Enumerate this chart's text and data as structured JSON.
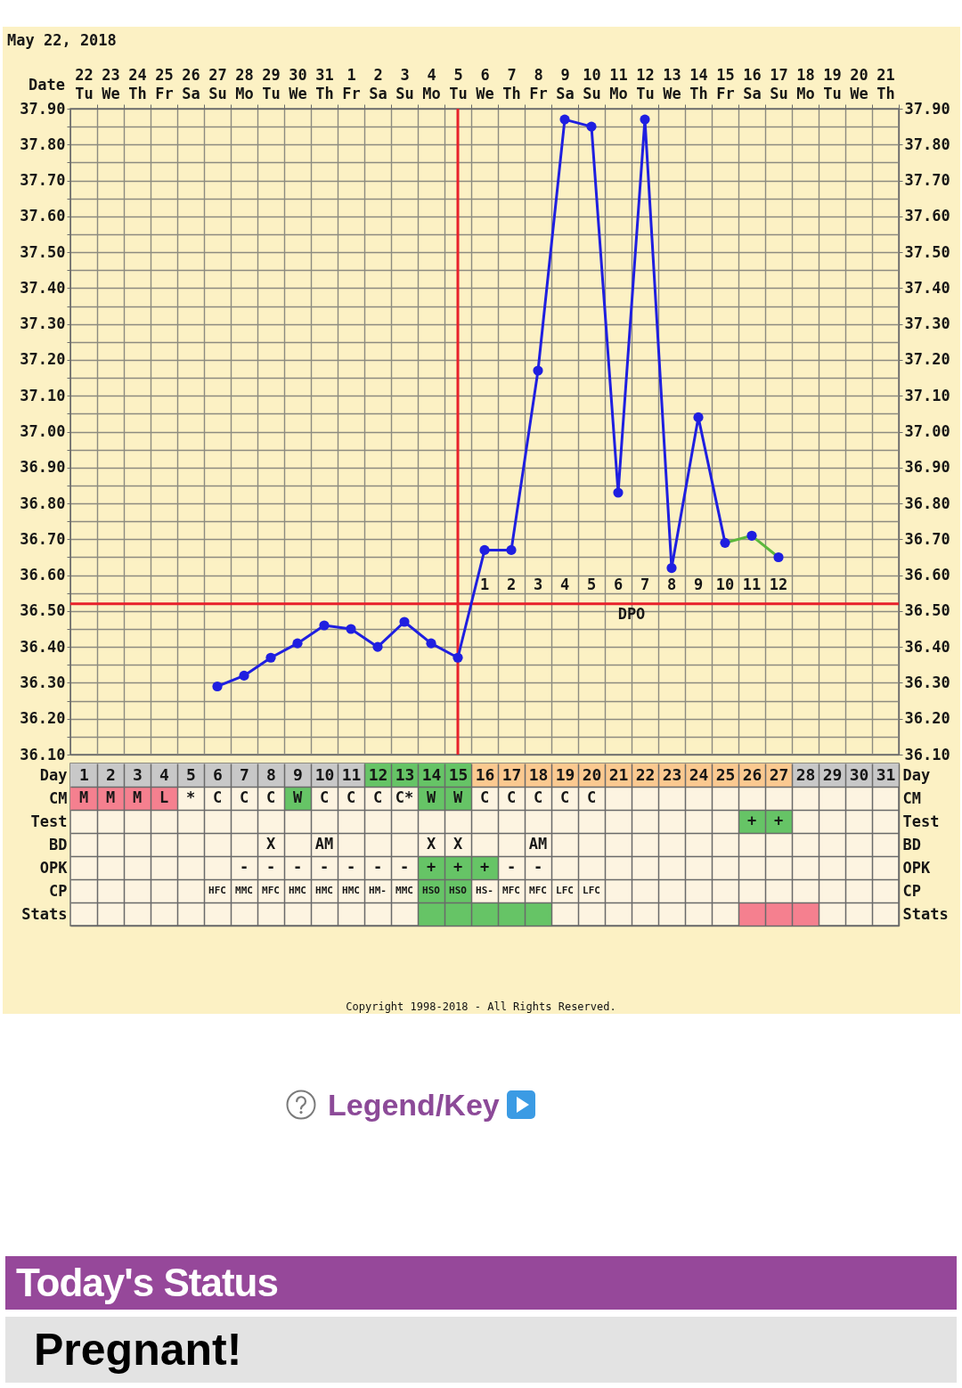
{
  "chart_data": [
    {
      "type": "line",
      "title": "May 22, 2018",
      "xlim": [
        0.5,
        31.5
      ],
      "xticks": [
        {
          "value": 1,
          "label": "1"
        },
        {
          "value": 2,
          "label": "2"
        },
        3,
        4,
        5,
        6,
        7,
        8,
        9,
        10,
        11,
        12,
        13,
        14,
        15,
        16,
        17,
        18,
        19,
        20,
        21,
        22,
        23,
        24,
        25,
        26,
        27,
        28,
        29,
        30,
        31
      ],
      "x2label": "Date",
      "x2lim": [
        "2018-05-21T12:00",
        "2018-06-21T12:00"
      ],
      "x2ticks": [
        {
          "value": "2018-05-22",
          "label": "22 Tu"
        },
        {
          "value": "2018-05-23",
          "label": "23 We"
        },
        {
          "value": "2018-05-24",
          "label": "24 Th"
        },
        {
          "value": "2018-05-25",
          "label": "25 Fr"
        },
        {
          "value": "2018-05-26",
          "label": "26 Sa"
        },
        {
          "value": "2018-05-27",
          "label": "27 Su"
        },
        {
          "value": "2018-05-28",
          "label": "28 Mo"
        },
        {
          "value": "2018-05-29",
          "label": "29 Tu"
        },
        {
          "value": "2018-05-30",
          "label": "30 We"
        },
        {
          "value": "2018-05-31",
          "label": "31 Th"
        },
        {
          "value": "2018-06-01",
          "label": "1 Fr"
        },
        {
          "value": "2018-06-02",
          "label": "2 Sa"
        },
        {
          "value": "2018-06-03",
          "label": "3 Su"
        },
        {
          "value": "2018-06-04",
          "label": "4 Mo"
        },
        {
          "value": "2018-06-05",
          "label": "5 Tu"
        },
        {
          "value": "2018-06-06",
          "label": "6 We"
        },
        {
          "value": "2018-06-07",
          "label": "7 Th"
        },
        {
          "value": "2018-06-08",
          "label": "8 Fr"
        },
        {
          "value": "2018-06-09",
          "label": "9 Sa"
        },
        {
          "value": "2018-06-10",
          "label": "10 Su"
        },
        {
          "value": "2018-06-11",
          "label": "11 Mo"
        },
        {
          "value": "2018-06-12",
          "label": "12 Tu"
        },
        {
          "value": "2018-06-13",
          "label": "13 We"
        },
        {
          "value": "2018-06-14",
          "label": "14 Th"
        },
        {
          "value": "2018-06-15",
          "label": "15 Fr"
        },
        {
          "value": "2018-06-16",
          "label": "16 Sa"
        },
        {
          "value": "2018-06-17",
          "label": "17 Su"
        },
        {
          "value": "2018-06-18",
          "label": "18 Mo"
        },
        {
          "value": "2018-06-19",
          "label": "19 Tu"
        },
        {
          "value": "2018-06-20",
          "label": "20 We"
        },
        {
          "value": "2018-06-21",
          "label": "21 Th"
        }
      ],
      "ylim": [
        36.1,
        37.9
      ],
      "yticks": [
        {
          "value": 36.1,
          "label": "36.10"
        },
        {
          "value": 36.15,
          "label": null
        },
        {
          "value": 36.2,
          "label": "36.20"
        },
        {
          "value": 36.25,
          "label": null
        },
        {
          "value": 36.3,
          "label": "36.30"
        },
        {
          "value": 36.35,
          "label": null
        },
        {
          "value": 36.4,
          "label": "36.40"
        },
        {
          "value": 36.45,
          "label": null
        },
        {
          "value": 36.5,
          "label": "36.50"
        },
        {
          "value": 36.55,
          "label": null
        },
        {
          "value": 36.6,
          "label": "36.60"
        },
        {
          "value": 36.65,
          "label": null
        },
        {
          "value": 36.7,
          "label": "36.70"
        },
        {
          "value": 36.75,
          "label": null
        },
        {
          "value": 36.8,
          "label": "36.80"
        },
        {
          "value": 36.85,
          "label": null
        },
        {
          "value": 36.9,
          "label": "36.90"
        },
        {
          "value": 36.95,
          "label": null
        },
        {
          "value": 37,
          "label": "37.00"
        },
        {
          "value": 37.05,
          "label": null
        },
        {
          "value": 37.1,
          "label": "37.10"
        },
        {
          "value": 37.15,
          "label": null
        },
        {
          "value": 37.2,
          "label": "37.20"
        },
        {
          "value": 37.25,
          "label": null
        },
        {
          "value": 37.3,
          "label": "37.30"
        },
        {
          "value": 37.35,
          "label": null
        },
        {
          "value": 37.4,
          "label": "37.40"
        },
        {
          "value": 37.45,
          "label": null
        },
        {
          "value": 37.5,
          "label": "37.50"
        },
        {
          "value": 37.55,
          "label": null
        },
        {
          "value": 37.6,
          "label": "37.60"
        },
        {
          "value": 37.65,
          "label": null
        },
        {
          "value": 37.7,
          "label": "37.70"
        },
        {
          "value": 37.75,
          "label": null
        },
        {
          "value": 37.8,
          "label": "37.80"
        },
        {
          "value": 37.85,
          "label": null
        },
        {
          "value": 37.9,
          "label": "37.90"
        }
      ],
      "y2lim": [
        36.1,
        37.9
      ],
      "y2ticks": [
        {
          "value": 36.1,
          "label": "36.10"
        },
        {
          "value": 36.2,
          "label": "36.20"
        },
        {
          "value": 36.3,
          "label": "36.30"
        },
        {
          "value": 36.4,
          "label": "36.40"
        },
        {
          "value": 36.5,
          "label": "36.50"
        },
        {
          "value": 36.6,
          "label": "36.60"
        },
        {
          "value": 36.7,
          "label": "36.70"
        },
        {
          "value": 36.8,
          "label": "36.80"
        },
        {
          "value": 36.9,
          "label": "36.90"
        },
        {
          "value": 37,
          "label": "37.00"
        },
        {
          "value": 37.1,
          "label": "37.10"
        },
        {
          "value": 37.2,
          "label": "37.20"
        },
        {
          "value": 37.3,
          "label": "37.30"
        },
        {
          "value": 37.4,
          "label": "37.40"
        },
        {
          "value": 37.5,
          "label": "37.50"
        },
        {
          "value": 37.6,
          "label": "37.60"
        },
        {
          "value": 37.7,
          "label": "37.70"
        },
        {
          "value": 37.8,
          "label": "37.80"
        },
        {
          "value": 37.9,
          "label": "37.90"
        }
      ],
      "grid": true,
      "marker": "circle",
      "series": [
        {
          "type": "line",
          "color": "#5cb83c",
          "marker": "none",
          "x": [
            25,
            26,
            27
          ],
          "values": [
            36.69,
            36.71,
            36.65
          ]
        },
        {
          "type": "line",
          "color": "#1f1fe0",
          "x": [
            6,
            7,
            8,
            9,
            10,
            11,
            12,
            13,
            14,
            15,
            16,
            17,
            18,
            19,
            20,
            21,
            22,
            23,
            24,
            25
          ],
          "values": [
            36.29,
            36.32,
            36.37,
            36.41,
            36.46,
            36.45,
            36.4,
            36.47,
            36.41,
            36.37,
            36.67,
            36.67,
            37.17,
            37.87,
            37.85,
            36.83,
            37.87,
            36.62,
            37.04,
            36.69
          ]
        },
        {
          "type": "scatter",
          "color": "#1f1fe0",
          "x": [
            26,
            27
          ],
          "values": [
            36.71,
            36.65
          ]
        }
      ],
      "ref_lines": [
        {
          "axis": "x",
          "value": 15,
          "color": "#e8212b"
        },
        {
          "axis": "y",
          "value": 36.52,
          "color": "#e8212b",
          "label": "DPO"
        }
      ],
      "annotations": [
        {
          "text": "1",
          "x": 16,
          "y": 36.52
        },
        {
          "text": "2",
          "x": 17,
          "y": 36.52
        },
        {
          "text": "3",
          "x": 18,
          "y": 36.52
        },
        {
          "text": "4",
          "x": 19,
          "y": 36.52
        },
        {
          "text": "5",
          "x": 20,
          "y": 36.52
        },
        {
          "text": "6",
          "x": 21,
          "y": 36.52
        },
        {
          "text": "7",
          "x": 22,
          "y": 36.52
        },
        {
          "text": "8",
          "x": 23,
          "y": 36.52
        },
        {
          "text": "9",
          "x": 24,
          "y": 36.52
        },
        {
          "text": "10",
          "x": 25,
          "y": 36.52
        },
        {
          "text": "11",
          "x": 26,
          "y": 36.52
        },
        {
          "text": "12",
          "x": 27,
          "y": 36.52
        }
      ]
    },
    {
      "type": "other",
      "y_categories": [
        "Day",
        "CM",
        "Test",
        "BD",
        "OPK",
        "CP",
        "Stats"
      ],
      "y2_categories": [
        "Day",
        "CM",
        "Test",
        "BD",
        "OPK",
        "CP",
        "Stats"
      ],
      "cell_labels": [
        [
          null,
          null,
          null,
          null,
          null,
          null,
          null,
          null,
          null,
          null,
          null,
          null,
          null,
          null,
          null,
          null,
          null,
          null,
          null,
          null,
          null,
          null,
          null,
          null,
          null,
          null,
          null,
          null,
          null,
          null,
          null
        ],
        [
          "M",
          "M",
          "M",
          "L",
          "*",
          "C",
          "C",
          "C",
          "W",
          "C",
          "C",
          "C",
          "C*",
          "W",
          "W",
          "C",
          "C",
          "C",
          "C",
          "C",
          null,
          null,
          null,
          null,
          null,
          null,
          null,
          null,
          null,
          null,
          null
        ],
        [
          null,
          null,
          null,
          null,
          null,
          null,
          null,
          null,
          null,
          null,
          null,
          null,
          null,
          null,
          null,
          null,
          null,
          null,
          null,
          null,
          null,
          null,
          null,
          null,
          null,
          "+",
          "+",
          null,
          null,
          null,
          null
        ],
        [
          null,
          null,
          null,
          null,
          null,
          null,
          null,
          "X",
          null,
          "AM",
          null,
          null,
          null,
          "X",
          "X",
          null,
          null,
          "AM",
          null,
          null,
          null,
          null,
          null,
          null,
          null,
          null,
          null,
          null,
          null,
          null,
          null
        ],
        [
          null,
          null,
          null,
          null,
          null,
          null,
          "-",
          "-",
          "-",
          "-",
          "-",
          "-",
          "-",
          "+",
          "+",
          "+",
          "-",
          "-",
          null,
          null,
          null,
          null,
          null,
          null,
          null,
          null,
          null,
          null,
          null,
          null,
          null
        ],
        [
          null,
          null,
          null,
          null,
          null,
          "HFC",
          "MMC",
          "MFC",
          "HMC",
          "HMC",
          "HMC",
          "HM-",
          "MMC",
          "HSO",
          "HSO",
          "HS-",
          "MFC",
          "MFC",
          "LFC",
          "LFC",
          null,
          null,
          null,
          null,
          null,
          null,
          null,
          null,
          null,
          null,
          null
        ],
        [
          null,
          null,
          null,
          null,
          null,
          null,
          null,
          null,
          null,
          null,
          null,
          null,
          null,
          null,
          null,
          null,
          null,
          null,
          null,
          null,
          null,
          null,
          null,
          null,
          null,
          null,
          null,
          null,
          null,
          null,
          null
        ]
      ],
      "colors": [
        [
          "#c8c8c8",
          "#c8c8c8",
          "#c8c8c8",
          "#c8c8c8",
          "#c8c8c8",
          "#c8c8c8",
          "#c8c8c8",
          "#c8c8c8",
          "#c8c8c8",
          "#c8c8c8",
          "#c8c8c8",
          "#66c466",
          "#66c466",
          "#66c466",
          "#66c466",
          "#fbc990",
          "#fbc990",
          "#fbc990",
          "#fbc990",
          "#fbc990",
          "#fbc990",
          "#fbc990",
          "#fbc990",
          "#fbc990",
          "#fbc990",
          "#fbc990",
          "#fbc990",
          "#c8c8c8",
          "#c8c8c8",
          "#c8c8c8",
          "#c8c8c8"
        ],
        [
          "#f5808f",
          "#f5808f",
          "#f5808f",
          "#f5808f",
          null,
          null,
          null,
          null,
          "#66c466",
          null,
          null,
          null,
          null,
          "#66c466",
          "#66c466",
          null,
          null,
          null,
          null,
          null,
          null,
          null,
          null,
          null,
          null,
          null,
          null,
          null,
          null,
          null,
          null
        ],
        [
          null,
          null,
          null,
          null,
          null,
          null,
          null,
          null,
          null,
          null,
          null,
          null,
          null,
          null,
          null,
          null,
          null,
          null,
          null,
          null,
          null,
          null,
          null,
          null,
          null,
          "#66c466",
          "#66c466",
          null,
          null,
          null,
          null
        ],
        [
          null,
          null,
          null,
          null,
          null,
          null,
          null,
          null,
          null,
          null,
          null,
          null,
          null,
          null,
          null,
          null,
          null,
          null,
          null,
          null,
          null,
          null,
          null,
          null,
          null,
          null,
          null,
          null,
          null,
          null,
          null
        ],
        [
          null,
          null,
          null,
          null,
          null,
          null,
          null,
          null,
          null,
          null,
          null,
          null,
          null,
          "#66c466",
          "#66c466",
          "#66c466",
          null,
          null,
          null,
          null,
          null,
          null,
          null,
          null,
          null,
          null,
          null,
          null,
          null,
          null,
          null
        ],
        [
          null,
          null,
          null,
          null,
          null,
          null,
          null,
          null,
          null,
          null,
          null,
          null,
          null,
          "#66c466",
          "#66c466",
          null,
          null,
          null,
          null,
          null,
          null,
          null,
          null,
          null,
          null,
          null,
          null,
          null,
          null,
          null,
          null
        ],
        [
          null,
          null,
          null,
          null,
          null,
          null,
          null,
          null,
          null,
          null,
          null,
          null,
          null,
          "#66c466",
          "#66c466",
          "#66c466",
          "#66c466",
          "#66c466",
          null,
          null,
          null,
          null,
          null,
          null,
          null,
          "#f5808f",
          "#f5808f",
          "#f5808f",
          null,
          null,
          null
        ]
      ],
      "annotations": [
        "Copyright 1998-2018 - All Rights Reserved.",
        "Legend/Key"
      ]
    },
    {
      "type": "other",
      "title": "Today's Status",
      "annotations": [
        "Pregnant!"
      ]
    }
  ]
}
